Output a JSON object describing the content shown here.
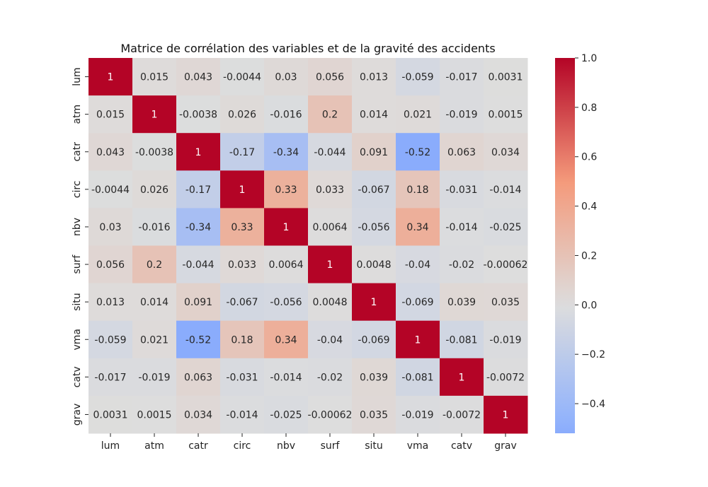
{
  "chart_data": {
    "type": "heatmap",
    "title": "Matrice de corrélation des variables et de la gravité des accidents",
    "xlabel": "",
    "ylabel": "",
    "x_labels": [
      "lum",
      "atm",
      "catr",
      "circ",
      "nbv",
      "surf",
      "situ",
      "vma",
      "catv",
      "grav"
    ],
    "y_labels": [
      "lum",
      "atm",
      "catr",
      "circ",
      "nbv",
      "surf",
      "situ",
      "vma",
      "catv",
      "grav"
    ],
    "values": [
      [
        1,
        0.015,
        0.043,
        -0.0044,
        0.03,
        0.056,
        0.013,
        -0.059,
        -0.017,
        0.0031
      ],
      [
        0.015,
        1,
        -0.0038,
        0.026,
        -0.016,
        0.2,
        0.014,
        0.021,
        -0.019,
        0.0015
      ],
      [
        0.043,
        -0.0038,
        1,
        -0.17,
        -0.34,
        -0.044,
        0.091,
        -0.52,
        0.063,
        0.034
      ],
      [
        -0.0044,
        0.026,
        -0.17,
        1,
        0.33,
        0.033,
        -0.067,
        0.18,
        -0.031,
        -0.014
      ],
      [
        0.03,
        -0.016,
        -0.34,
        0.33,
        1,
        0.0064,
        -0.056,
        0.34,
        -0.014,
        -0.025
      ],
      [
        0.056,
        0.2,
        -0.044,
        0.033,
        0.0064,
        1,
        0.0048,
        -0.04,
        -0.02,
        -0.00062
      ],
      [
        0.013,
        0.014,
        0.091,
        -0.067,
        -0.056,
        0.0048,
        1,
        -0.069,
        0.039,
        0.035
      ],
      [
        -0.059,
        0.021,
        -0.52,
        0.18,
        0.34,
        -0.04,
        -0.069,
        1,
        -0.081,
        -0.019
      ],
      [
        -0.017,
        -0.019,
        0.063,
        -0.031,
        -0.014,
        -0.02,
        0.039,
        -0.081,
        1,
        -0.0072
      ],
      [
        0.0031,
        0.0015,
        0.034,
        -0.014,
        -0.025,
        -0.00062,
        0.035,
        -0.019,
        -0.0072,
        1
      ]
    ],
    "annotations": true,
    "colormap": "coolwarm",
    "colorbar": {
      "range": [
        -0.52,
        1.0
      ],
      "ticks": [
        -0.4,
        -0.2,
        0.0,
        0.2,
        0.4,
        0.6,
        0.8,
        1.0
      ],
      "tick_labels": [
        "−0.4",
        "−0.2",
        "0.0",
        "0.2",
        "0.4",
        "0.6",
        "0.8",
        "1.0"
      ]
    },
    "grid": false,
    "legend": "colorbar-right"
  }
}
